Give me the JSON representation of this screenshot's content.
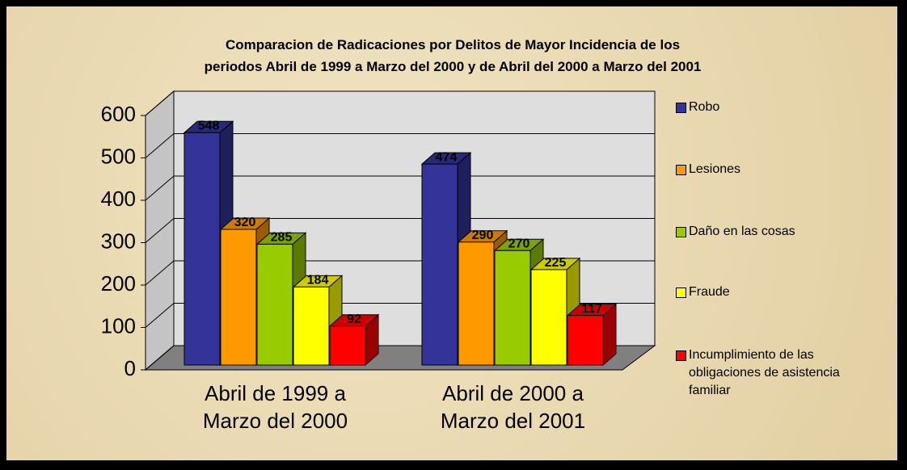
{
  "chart_data": {
    "type": "bar3d",
    "title": "Comparacion de Radicaciones por Delitos de Mayor Incidencia de los periodos Abril de 1999 a Marzo del 2000 y de Abril del 2000 a Marzo del 2001",
    "categories": [
      "Abril de 1999 a Marzo del 2000",
      "Abril de 2000 a Marzo del 2001"
    ],
    "series": [
      {
        "name": "Robo",
        "color": "#333399",
        "values": [
          548,
          474
        ]
      },
      {
        "name": "Lesiones",
        "color": "#ff9900",
        "values": [
          320,
          290
        ]
      },
      {
        "name": "Daño en las cosas",
        "color": "#99cc00",
        "values": [
          285,
          270
        ]
      },
      {
        "name": "Fraude",
        "color": "#ffff00",
        "values": [
          184,
          225
        ]
      },
      {
        "name": "Incumplimiento de las obligaciones de asistencia familiar",
        "color": "#ff0000",
        "values": [
          92,
          117
        ]
      }
    ],
    "ylim": [
      0,
      600
    ],
    "yticks": [
      0,
      100,
      200,
      300,
      400,
      500,
      600
    ],
    "grid": true,
    "legend": "right"
  }
}
